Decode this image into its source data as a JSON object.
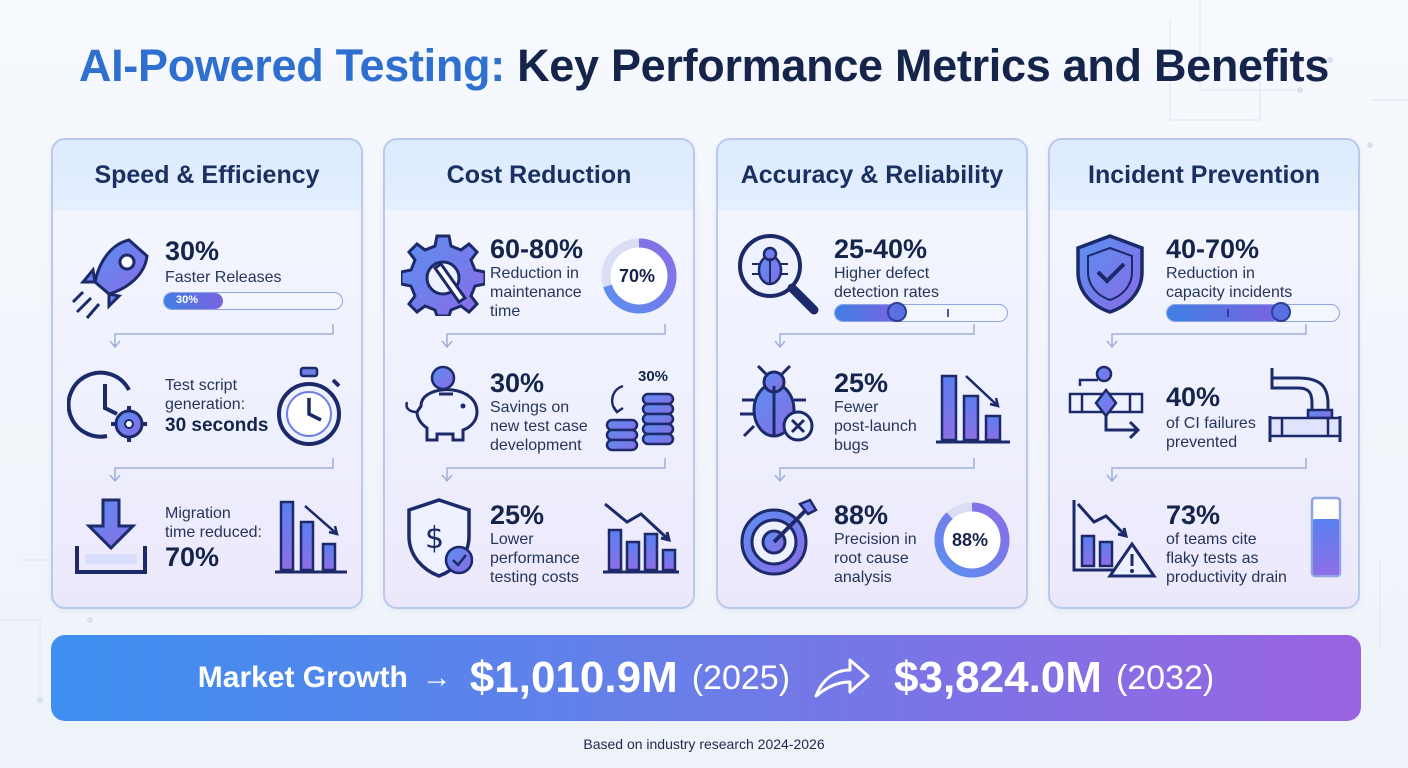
{
  "title": {
    "accent": "AI-Powered Testing:",
    "rest": " Key Performance Metrics and Benefits"
  },
  "colors": {
    "accent": "#2f6fd0",
    "gradient_start": "#3d8ff0",
    "gradient_end": "#9a63e2",
    "card_border": "#b9c8ec"
  },
  "cards": [
    {
      "heading": "Speed & Efficiency",
      "items": [
        {
          "icon": "rocket-icon",
          "value": "30%",
          "text": "Faster Releases",
          "progress_label": "30%",
          "progress": 0.3
        },
        {
          "icon": "clock-gear-icon",
          "text": "Test script\ngeneration:",
          "strong": "30 seconds",
          "side_icon": "stopwatch-icon"
        },
        {
          "icon": "download-tray-icon",
          "text": "Migration\ntime reduced:",
          "strong": "70%",
          "side_icon": "declining-bar-chart-icon"
        }
      ]
    },
    {
      "heading": "Cost Reduction",
      "items": [
        {
          "icon": "gear-wrench-icon",
          "value": "60-80%",
          "text": "Reduction in\nmaintenance\ntime",
          "ring_label": "70%",
          "ring": 0.7
        },
        {
          "icon": "piggy-bank-icon",
          "value": "30%",
          "text": "Savings on\nnew test case\ndevelopment",
          "side_label": "30%",
          "side_icon": "coin-stacks-icon"
        },
        {
          "icon": "shield-dollar-icon",
          "value": "25%",
          "text": "Lower\nperformance\ntesting costs",
          "side_icon": "declining-bar-chart-icon"
        }
      ]
    },
    {
      "heading": "Accuracy & Reliability",
      "items": [
        {
          "icon": "bug-magnifier-icon",
          "value": "25-40%",
          "text": "Higher defect\ndetection rates",
          "slider": 0.37
        },
        {
          "icon": "bug-x-icon",
          "value": "25%",
          "text": "Fewer\npost-launch\nbugs",
          "side_icon": "declining-bar-chart-icon"
        },
        {
          "icon": "target-arrow-icon",
          "value": "88%",
          "text": "Precision in\nroot cause\nanalysis",
          "ring_label": "88%",
          "ring": 0.88
        }
      ]
    },
    {
      "heading": "Incident Prevention",
      "items": [
        {
          "icon": "shield-check-icon",
          "value": "40-70%",
          "text": "Reduction in\ncapacity incidents",
          "slider": 0.66
        },
        {
          "icon": "pipeline-icon",
          "value": "40%",
          "text": "of CI failures\nprevented",
          "side_icon": "pipe-icon"
        },
        {
          "icon": "chart-warning-icon",
          "value": "73%",
          "text": "of teams cite\nflaky tests as\nproductivity drain",
          "level": 0.73,
          "side_icon": "tube-level-icon"
        }
      ]
    }
  ],
  "market": {
    "label": "Market Growth",
    "arrow": "→",
    "value_start": "$1,010.9M",
    "year_start": "(2025)",
    "value_end": "$3,824.0M",
    "year_end": "(2032)"
  },
  "footer": "Based on industry research 2024-2026"
}
